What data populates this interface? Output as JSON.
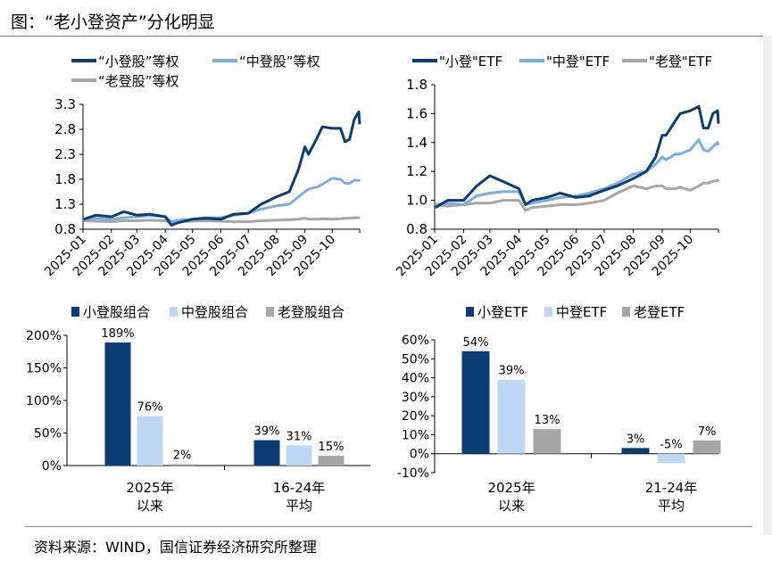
{
  "title": "图：“老小登资产”分化明显",
  "source": "资料来源：WIND，国信证券经济研究所整理",
  "colors": {
    "dark": "#0b3c74",
    "light": "#7aaee0",
    "gray": "#a6a6a6",
    "bar_light": "#bdd7f5"
  },
  "chart_data": [
    {
      "type": "line",
      "ylim": [
        0.8,
        3.3
      ],
      "yticks": [
        "0.8",
        "1.3",
        "1.8",
        "2.3",
        "2.8",
        "3.3"
      ],
      "xticks": [
        "2025-01",
        "2025-02",
        "2025-03",
        "2025-04",
        "2025-05",
        "2025-06",
        "2025-07",
        "2025-08",
        "2025-09",
        "2025-10"
      ],
      "legend": "top",
      "x": [
        "2025-01-02",
        "2025-01-15",
        "2025-02-01",
        "2025-02-15",
        "2025-03-01",
        "2025-03-15",
        "2025-04-01",
        "2025-04-08",
        "2025-04-15",
        "2025-05-01",
        "2025-05-15",
        "2025-06-01",
        "2025-06-15",
        "2025-07-01",
        "2025-07-15",
        "2025-08-01",
        "2025-08-15",
        "2025-08-25",
        "2025-09-01",
        "2025-09-05",
        "2025-09-15",
        "2025-09-20",
        "2025-10-01",
        "2025-10-10",
        "2025-10-15",
        "2025-10-20",
        "2025-10-25",
        "2025-10-30",
        "2025-10-31"
      ],
      "series": [
        {
          "name": "“小登股”等权",
          "color": "#0b3c74",
          "values": [
            1.0,
            1.08,
            1.05,
            1.15,
            1.08,
            1.1,
            1.05,
            0.88,
            0.93,
            1.0,
            1.02,
            1.0,
            1.1,
            1.12,
            1.3,
            1.45,
            1.55,
            2.0,
            2.45,
            2.3,
            2.65,
            2.85,
            2.82,
            2.82,
            2.55,
            2.6,
            3.0,
            3.15,
            2.9
          ]
        },
        {
          "name": "“中登股”等权",
          "color": "#7aaee0",
          "values": [
            1.0,
            1.02,
            1.0,
            1.03,
            1.05,
            1.07,
            1.05,
            0.95,
            0.98,
            1.0,
            1.03,
            1.03,
            1.08,
            1.12,
            1.2,
            1.27,
            1.3,
            1.45,
            1.55,
            1.6,
            1.65,
            1.7,
            1.82,
            1.8,
            1.72,
            1.72,
            1.78,
            1.78,
            1.76
          ]
        },
        {
          "name": "“老登股”等权",
          "color": "#a6a6a6",
          "values": [
            0.97,
            0.96,
            0.95,
            0.97,
            0.97,
            0.98,
            0.97,
            0.93,
            0.95,
            0.96,
            0.97,
            0.96,
            0.95,
            0.95,
            0.97,
            0.98,
            0.99,
            1.0,
            1.02,
            1.0,
            1.0,
            1.01,
            1.0,
            1.01,
            1.02,
            1.02,
            1.03,
            1.03,
            1.02
          ]
        }
      ]
    },
    {
      "type": "line",
      "ylim": [
        0.8,
        1.8
      ],
      "yticks": [
        "0.8",
        "1.0",
        "1.2",
        "1.4",
        "1.6",
        "1.8"
      ],
      "xticks": [
        "2025-01",
        "2025-02",
        "2025-03",
        "2025-04",
        "2025-05",
        "2025-06",
        "2025-07",
        "2025-08",
        "2025-09",
        "2025-10"
      ],
      "legend": "top",
      "x": [
        "2025-01-02",
        "2025-01-15",
        "2025-02-01",
        "2025-02-15",
        "2025-03-01",
        "2025-03-15",
        "2025-04-01",
        "2025-04-08",
        "2025-04-15",
        "2025-05-01",
        "2025-05-15",
        "2025-06-01",
        "2025-06-15",
        "2025-07-01",
        "2025-07-15",
        "2025-08-01",
        "2025-08-15",
        "2025-08-25",
        "2025-09-01",
        "2025-09-05",
        "2025-09-15",
        "2025-09-20",
        "2025-10-01",
        "2025-10-10",
        "2025-10-15",
        "2025-10-20",
        "2025-10-25",
        "2025-10-30",
        "2025-10-31"
      ],
      "series": [
        {
          "name": "\"小登\"ETF",
          "color": "#0b3c74",
          "values": [
            0.95,
            1.0,
            1.0,
            1.1,
            1.17,
            1.13,
            1.08,
            0.97,
            1.0,
            1.02,
            1.05,
            1.02,
            1.03,
            1.07,
            1.1,
            1.15,
            1.2,
            1.3,
            1.45,
            1.45,
            1.55,
            1.6,
            1.62,
            1.65,
            1.5,
            1.5,
            1.6,
            1.62,
            1.53
          ]
        },
        {
          "name": "\"中登\"ETF",
          "color": "#7aaee0",
          "values": [
            0.97,
            0.98,
            0.97,
            1.03,
            1.05,
            1.06,
            1.06,
            0.97,
            0.98,
            1.0,
            1.02,
            1.03,
            1.05,
            1.08,
            1.12,
            1.18,
            1.2,
            1.25,
            1.3,
            1.28,
            1.32,
            1.32,
            1.35,
            1.42,
            1.35,
            1.34,
            1.37,
            1.4,
            1.38
          ]
        },
        {
          "name": "\"老登\"ETF",
          "color": "#a6a6a6",
          "values": [
            0.97,
            0.96,
            0.97,
            0.98,
            0.98,
            1.0,
            1.0,
            0.93,
            0.95,
            0.96,
            0.97,
            0.97,
            0.98,
            1.0,
            1.05,
            1.1,
            1.08,
            1.1,
            1.1,
            1.08,
            1.08,
            1.09,
            1.07,
            1.1,
            1.12,
            1.12,
            1.13,
            1.14,
            1.13
          ]
        }
      ]
    },
    {
      "type": "bar",
      "ylim": [
        0,
        200
      ],
      "yticks": [
        "0%",
        "50%",
        "100%",
        "150%",
        "200%"
      ],
      "categories": [
        [
          "2025年",
          "以来"
        ],
        [
          "16-24年",
          "平均"
        ]
      ],
      "legend": "top",
      "series": [
        {
          "name": "小登股组合",
          "color": "#0b3c74",
          "values": [
            189,
            39
          ],
          "labels": [
            "189%",
            "39%"
          ]
        },
        {
          "name": "中登股组合",
          "color": "#bdd7f5",
          "values": [
            76,
            31
          ],
          "labels": [
            "76%",
            "31%"
          ]
        },
        {
          "name": "老登股组合",
          "color": "#a6a6a6",
          "values": [
            2,
            15
          ],
          "labels": [
            "2%",
            "15%"
          ]
        }
      ]
    },
    {
      "type": "bar",
      "ylim": [
        -10,
        60
      ],
      "yticks": [
        "-10%",
        "0%",
        "10%",
        "20%",
        "30%",
        "40%",
        "50%",
        "60%"
      ],
      "categories": [
        [
          "2025年",
          "以来"
        ],
        [
          "21-24年",
          "平均"
        ]
      ],
      "legend": "top",
      "series": [
        {
          "name": "小登ETF",
          "color": "#0b3c74",
          "values": [
            54,
            3
          ],
          "labels": [
            "54%",
            "3%"
          ]
        },
        {
          "name": "中登ETF",
          "color": "#bdd7f5",
          "values": [
            39,
            -5
          ],
          "labels": [
            "39%",
            "-5%"
          ]
        },
        {
          "name": "老登ETF",
          "color": "#a6a6a6",
          "values": [
            13,
            7
          ],
          "labels": [
            "13%",
            "7%"
          ]
        }
      ]
    }
  ]
}
